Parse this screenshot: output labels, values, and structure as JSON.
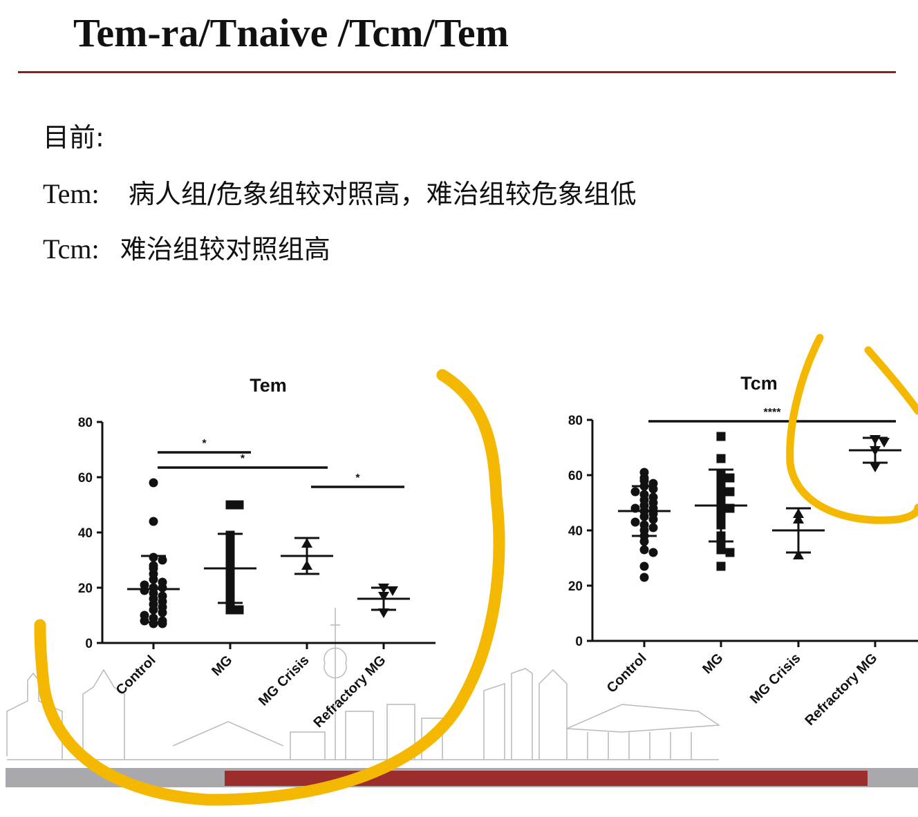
{
  "slide": {
    "title": "Tem-ra/Tnaive /Tcm/Tem",
    "intro": "目前:",
    "tem_prefix": "Tem:",
    "tem_text": "病人组/危象组较对照高，难治组较危象组低",
    "tcm_prefix": "Tcm:",
    "tcm_text": "难治组较对照组高"
  },
  "colors": {
    "title_rule": "#8b1f1f",
    "bottom_bar": "#a9a9ad",
    "bottom_accent": "#9b2d2d",
    "highlight": "#f5b800",
    "ink": "#111111"
  },
  "chart_data": [
    {
      "type": "scatter",
      "title": "Tem",
      "categories": [
        "Control",
        "MG",
        "MG Crisis",
        "Refractory MG"
      ],
      "ylim": [
        0,
        80
      ],
      "yticks": [
        0,
        20,
        40,
        60,
        80
      ],
      "marker_shapes": [
        "circle",
        "square",
        "triangle-up",
        "triangle-down"
      ],
      "points": [
        [
          58,
          44,
          31,
          30,
          28,
          27,
          25,
          23,
          22,
          21,
          20,
          20,
          19,
          18,
          17,
          16,
          15,
          14,
          13,
          12,
          11,
          10,
          9,
          8,
          8,
          7,
          7
        ],
        [
          50,
          50,
          39,
          38,
          36,
          33,
          30,
          28,
          26,
          25,
          22,
          20,
          18,
          15,
          13,
          12,
          12
        ],
        [
          36,
          28
        ],
        [
          20,
          19,
          17,
          11
        ]
      ],
      "means": [
        19.5,
        27,
        31.5,
        16
      ],
      "sd": [
        12,
        12.5,
        6.5,
        4
      ],
      "significance": [
        {
          "from": 0,
          "to": 1,
          "label": "*",
          "y": 69
        },
        {
          "from": 0,
          "to": 2,
          "label": "*",
          "y": 63.5
        },
        {
          "from": 2,
          "to": 3,
          "label": "*",
          "y": 56.5
        }
      ]
    },
    {
      "type": "scatter",
      "title": "Tcm",
      "categories": [
        "Control",
        "MG",
        "MG Crisis",
        "Refractory MG"
      ],
      "ylim": [
        0,
        80
      ],
      "yticks": [
        0,
        20,
        40,
        60,
        80
      ],
      "marker_shapes": [
        "circle",
        "square",
        "triangle-up",
        "triangle-down"
      ],
      "points": [
        [
          61,
          59,
          58,
          57,
          56,
          55,
          54,
          53,
          52,
          51,
          50,
          49,
          48,
          48,
          47,
          46,
          45,
          44,
          43,
          42,
          41,
          40,
          38,
          36,
          33,
          32,
          27,
          23
        ],
        [
          74,
          66,
          60,
          59,
          58,
          56,
          54,
          53,
          50,
          49,
          48,
          47,
          45,
          42,
          38,
          35,
          33,
          32,
          27
        ],
        [
          46,
          44,
          31
        ],
        [
          73,
          72,
          69,
          63
        ]
      ],
      "means": [
        47,
        49,
        40,
        69
      ],
      "sd": [
        9,
        13,
        8,
        4.5
      ],
      "significance": [
        {
          "from": 0,
          "to": 3,
          "label": "****",
          "y": 79.5
        }
      ]
    }
  ]
}
